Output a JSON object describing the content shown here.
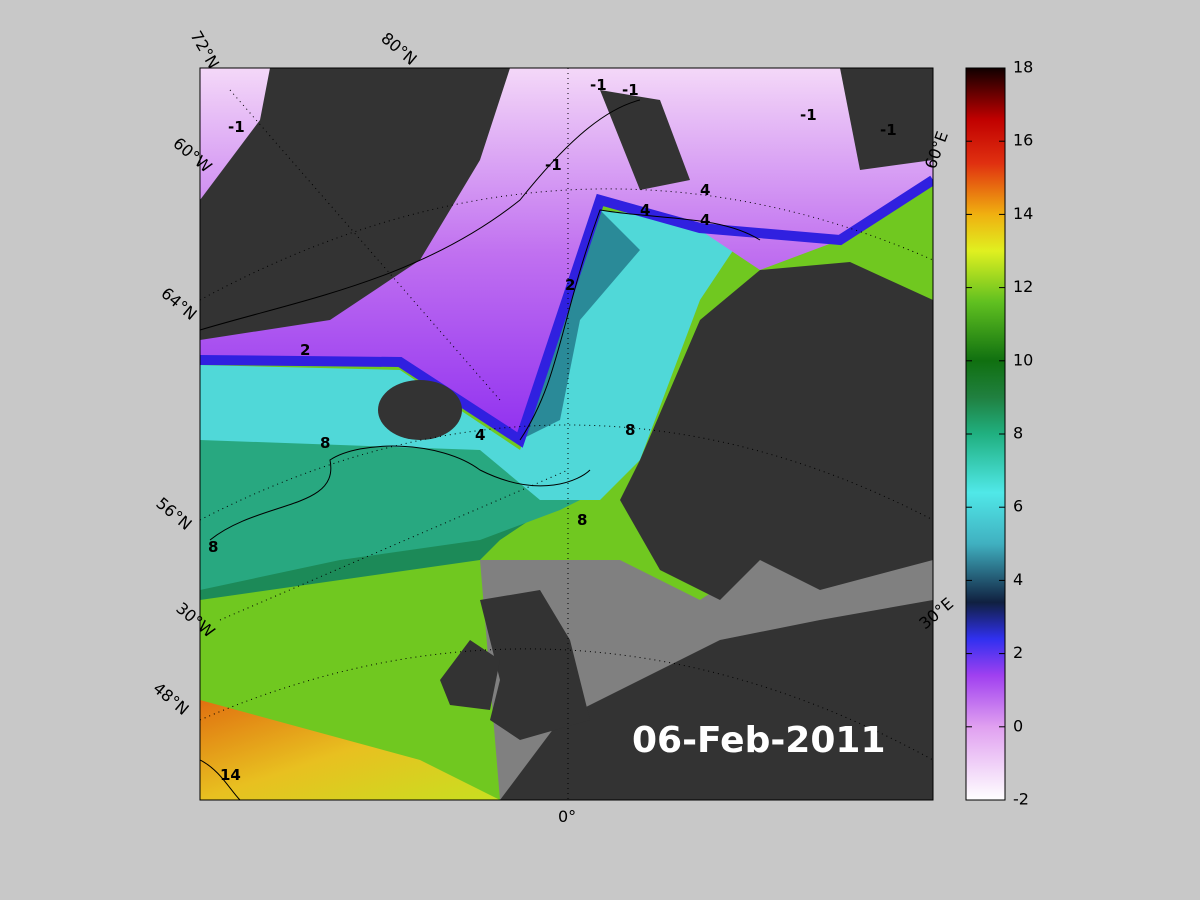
{
  "date": "06-Feb-2011",
  "graticule_labels": [
    "72°N",
    "80°N",
    "60°W",
    "64°N",
    "56°N",
    "30°W",
    "48°N",
    "0°",
    "60°E",
    "30°E"
  ],
  "contour_labels": [
    -1,
    -1,
    -1,
    -1,
    -1,
    -1,
    2,
    2,
    4,
    4,
    4,
    4,
    8,
    8,
    8,
    8,
    14
  ],
  "colorbar": {
    "lim": [
      -2,
      18
    ],
    "ticks": [
      -2,
      0,
      2,
      4,
      6,
      8,
      10,
      12,
      14,
      16,
      18
    ]
  }
}
